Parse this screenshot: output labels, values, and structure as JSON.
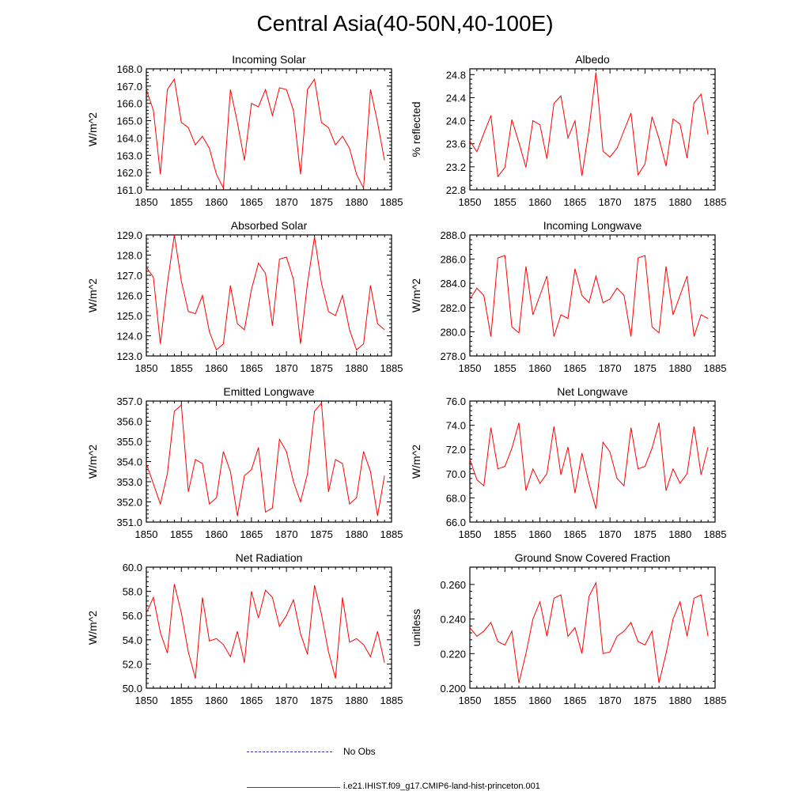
{
  "figure": {
    "title": "Central Asia(40-50N,40-100E)",
    "legend": [
      {
        "label": "No Obs",
        "color": "#3333cc",
        "style": "dashed"
      },
      {
        "label": "i.e21.IHIST.f09_g17.CMIP6-land-hist-princeton.001",
        "color": "#ff0000",
        "style": "solid"
      }
    ]
  },
  "chart_data": [
    {
      "type": "line",
      "title": "Incoming Solar",
      "ylabel": "W/m^2",
      "xlim": [
        1850,
        1885
      ],
      "ylim": [
        161.0,
        168.0
      ],
      "yticks": [
        "161.0",
        "162.0",
        "163.0",
        "164.0",
        "165.0",
        "166.0",
        "167.0",
        "168.0"
      ],
      "xticks": [
        "1850",
        "1855",
        "1860",
        "1865",
        "1870",
        "1875",
        "1880",
        "1885"
      ],
      "series": [
        {
          "color": "#ff0000",
          "x": [
            1850,
            1851,
            1852,
            1853,
            1854,
            1855,
            1856,
            1857,
            1858,
            1859,
            1860,
            1861,
            1862,
            1863,
            1864,
            1865,
            1866,
            1867,
            1868,
            1869,
            1870,
            1871,
            1872,
            1873,
            1874,
            1875,
            1876,
            1877,
            1878,
            1879,
            1880,
            1881,
            1882,
            1883,
            1884
          ],
          "values": [
            166.8,
            165.6,
            161.9,
            166.8,
            167.4,
            164.9,
            164.6,
            163.6,
            164.1,
            163.4,
            161.9,
            161.1,
            166.8,
            164.9,
            162.7,
            166.0,
            165.8,
            166.8,
            165.3,
            166.9,
            166.8,
            165.6,
            161.9,
            166.8,
            167.4,
            164.9,
            164.6,
            163.6,
            164.1,
            163.4,
            161.9,
            161.1,
            166.8,
            164.9,
            162.7
          ]
        }
      ]
    },
    {
      "type": "line",
      "title": "Albedo",
      "ylabel": "% reflected",
      "xlim": [
        1850,
        1885
      ],
      "ylim": [
        22.8,
        24.9
      ],
      "yticks": [
        "22.8",
        "23.2",
        "23.6",
        "24.0",
        "24.4",
        "24.8"
      ],
      "ytick_values": [
        22.8,
        23.2,
        23.6,
        24.0,
        24.4,
        24.8
      ],
      "xticks": [
        "1850",
        "1855",
        "1860",
        "1865",
        "1870",
        "1875",
        "1880",
        "1885"
      ],
      "series": [
        {
          "color": "#ff0000",
          "x": [
            1850,
            1851,
            1852,
            1853,
            1854,
            1855,
            1856,
            1857,
            1858,
            1859,
            1860,
            1861,
            1862,
            1863,
            1864,
            1865,
            1866,
            1867,
            1868,
            1869,
            1870,
            1871,
            1872,
            1873,
            1874,
            1875,
            1876,
            1877,
            1878,
            1879,
            1880,
            1881,
            1882,
            1883,
            1884
          ],
          "values": [
            23.65,
            23.46,
            23.78,
            24.09,
            23.03,
            23.19,
            24.02,
            23.62,
            23.19,
            24.0,
            23.93,
            23.34,
            24.3,
            24.43,
            23.7,
            24.0,
            23.04,
            23.85,
            24.84,
            23.47,
            23.37,
            23.52,
            23.83,
            24.13,
            23.06,
            23.25,
            24.07,
            23.69,
            23.21,
            24.03,
            23.94,
            23.35,
            24.31,
            24.46,
            23.76
          ]
        }
      ]
    },
    {
      "type": "line",
      "title": "Absorbed Solar",
      "ylabel": "W/m^2",
      "xlim": [
        1850,
        1885
      ],
      "ylim": [
        123.0,
        129.0
      ],
      "yticks": [
        "123.0",
        "124.0",
        "125.0",
        "126.0",
        "127.0",
        "128.0",
        "129.0"
      ],
      "xticks": [
        "1850",
        "1855",
        "1860",
        "1865",
        "1870",
        "1875",
        "1880",
        "1885"
      ],
      "series": [
        {
          "color": "#ff0000",
          "x": [
            1850,
            1851,
            1852,
            1853,
            1854,
            1855,
            1856,
            1857,
            1858,
            1859,
            1860,
            1861,
            1862,
            1863,
            1864,
            1865,
            1866,
            1867,
            1868,
            1869,
            1870,
            1871,
            1872,
            1873,
            1874,
            1875,
            1876,
            1877,
            1878,
            1879,
            1880,
            1881,
            1882,
            1883,
            1884
          ],
          "values": [
            127.4,
            126.9,
            123.6,
            126.6,
            129.0,
            126.7,
            125.2,
            125.1,
            126.0,
            124.2,
            123.3,
            123.6,
            126.5,
            124.6,
            124.3,
            126.3,
            127.6,
            127.1,
            124.5,
            127.8,
            127.9,
            126.8,
            123.6,
            126.6,
            128.9,
            126.6,
            125.2,
            125.0,
            126.0,
            124.3,
            123.3,
            123.6,
            126.5,
            124.6,
            124.3
          ]
        }
      ]
    },
    {
      "type": "line",
      "title": "Incoming Longwave",
      "ylabel": "W/m^2",
      "xlim": [
        1850,
        1885
      ],
      "ylim": [
        278.0,
        288.0
      ],
      "yticks": [
        "278.0",
        "280.0",
        "282.0",
        "284.0",
        "286.0",
        "288.0"
      ],
      "xticks": [
        "1850",
        "1855",
        "1860",
        "1865",
        "1870",
        "1875",
        "1880",
        "1885"
      ],
      "series": [
        {
          "color": "#ff0000",
          "x": [
            1850,
            1851,
            1852,
            1853,
            1854,
            1855,
            1856,
            1857,
            1858,
            1859,
            1860,
            1861,
            1862,
            1863,
            1864,
            1865,
            1866,
            1867,
            1868,
            1869,
            1870,
            1871,
            1872,
            1873,
            1874,
            1875,
            1876,
            1877,
            1878,
            1879,
            1880,
            1881,
            1882,
            1883,
            1884
          ],
          "values": [
            282.7,
            283.6,
            283.0,
            279.6,
            286.1,
            286.3,
            280.4,
            279.9,
            285.4,
            281.4,
            283.0,
            284.6,
            279.6,
            281.4,
            281.1,
            285.2,
            283.0,
            282.4,
            284.6,
            282.4,
            282.7,
            283.6,
            283.0,
            279.6,
            286.1,
            286.3,
            280.4,
            279.9,
            285.4,
            281.4,
            283.0,
            284.6,
            279.6,
            281.4,
            281.1
          ]
        }
      ]
    },
    {
      "type": "line",
      "title": "Emitted Longwave",
      "ylabel": "W/m^2",
      "xlim": [
        1850,
        1885
      ],
      "ylim": [
        351.0,
        357.0
      ],
      "yticks": [
        "351.0",
        "352.0",
        "353.0",
        "354.0",
        "355.0",
        "356.0",
        "357.0"
      ],
      "xticks": [
        "1850",
        "1855",
        "1860",
        "1865",
        "1870",
        "1875",
        "1880",
        "1885"
      ],
      "series": [
        {
          "color": "#ff0000",
          "x": [
            1850,
            1851,
            1852,
            1853,
            1854,
            1855,
            1856,
            1857,
            1858,
            1859,
            1860,
            1861,
            1862,
            1863,
            1864,
            1865,
            1866,
            1867,
            1868,
            1869,
            1870,
            1871,
            1872,
            1873,
            1874,
            1875,
            1876,
            1877,
            1878,
            1879,
            1880,
            1881,
            1882,
            1883,
            1884
          ],
          "values": [
            353.9,
            352.9,
            351.9,
            353.4,
            356.5,
            356.8,
            352.5,
            354.1,
            353.9,
            351.9,
            352.2,
            354.5,
            353.5,
            351.3,
            353.3,
            353.6,
            354.7,
            351.5,
            351.7,
            355.1,
            354.5,
            353.0,
            352.0,
            353.4,
            356.5,
            356.9,
            352.5,
            354.1,
            353.9,
            351.9,
            352.2,
            354.5,
            353.5,
            351.3,
            353.3
          ]
        }
      ]
    },
    {
      "type": "line",
      "title": "Net Longwave",
      "ylabel": "W/m^2",
      "xlim": [
        1850,
        1885
      ],
      "ylim": [
        66.0,
        76.0
      ],
      "yticks": [
        "66.0",
        "68.0",
        "70.0",
        "72.0",
        "74.0",
        "76.0"
      ],
      "xticks": [
        "1850",
        "1855",
        "1860",
        "1865",
        "1870",
        "1875",
        "1880",
        "1885"
      ],
      "series": [
        {
          "color": "#ff0000",
          "x": [
            1850,
            1851,
            1852,
            1853,
            1854,
            1855,
            1856,
            1857,
            1858,
            1859,
            1860,
            1861,
            1862,
            1863,
            1864,
            1865,
            1866,
            1867,
            1868,
            1869,
            1870,
            1871,
            1872,
            1873,
            1874,
            1875,
            1876,
            1877,
            1878,
            1879,
            1880,
            1881,
            1882,
            1883,
            1884
          ],
          "values": [
            71.2,
            69.5,
            69.0,
            73.8,
            70.4,
            70.6,
            72.1,
            74.2,
            68.6,
            70.4,
            69.2,
            70.0,
            73.9,
            69.9,
            72.2,
            68.4,
            71.7,
            69.2,
            67.1,
            72.6,
            71.8,
            69.6,
            69.0,
            73.8,
            70.4,
            70.6,
            72.1,
            74.2,
            68.6,
            70.4,
            69.2,
            70.0,
            73.9,
            69.9,
            72.2
          ]
        }
      ]
    },
    {
      "type": "line",
      "title": "Net Radiation",
      "ylabel": "W/m^2",
      "xlim": [
        1850,
        1885
      ],
      "ylim": [
        50.0,
        60.0
      ],
      "yticks": [
        "50.0",
        "52.0",
        "54.0",
        "56.0",
        "58.0",
        "60.0"
      ],
      "xticks": [
        "1850",
        "1855",
        "1860",
        "1865",
        "1870",
        "1875",
        "1880",
        "1885"
      ],
      "series": [
        {
          "color": "#ff0000",
          "x": [
            1850,
            1851,
            1852,
            1853,
            1854,
            1855,
            1856,
            1857,
            1858,
            1859,
            1860,
            1861,
            1862,
            1863,
            1864,
            1865,
            1866,
            1867,
            1868,
            1869,
            1870,
            1871,
            1872,
            1873,
            1874,
            1875,
            1876,
            1877,
            1878,
            1879,
            1880,
            1881,
            1882,
            1883,
            1884
          ],
          "values": [
            56.2,
            57.5,
            54.6,
            52.9,
            58.6,
            56.2,
            53.0,
            50.8,
            57.5,
            53.9,
            54.1,
            53.6,
            52.6,
            54.7,
            52.1,
            58.0,
            55.8,
            58.1,
            57.5,
            55.1,
            56.0,
            57.3,
            54.5,
            52.8,
            58.5,
            56.1,
            53.0,
            50.8,
            57.5,
            53.8,
            54.1,
            53.6,
            52.6,
            54.7,
            52.1
          ]
        }
      ]
    },
    {
      "type": "line",
      "title": "Ground Snow Covered Fraction",
      "ylabel": "unitless",
      "xlim": [
        1850,
        1885
      ],
      "ylim": [
        0.2,
        0.27
      ],
      "yticks": [
        "0.200",
        "0.220",
        "0.240",
        "0.260"
      ],
      "ytick_values": [
        0.2,
        0.22,
        0.24,
        0.26
      ],
      "xticks": [
        "1850",
        "1855",
        "1860",
        "1865",
        "1870",
        "1875",
        "1880",
        "1885"
      ],
      "series": [
        {
          "color": "#ff0000",
          "x": [
            1850,
            1851,
            1852,
            1853,
            1854,
            1855,
            1856,
            1857,
            1858,
            1859,
            1860,
            1861,
            1862,
            1863,
            1864,
            1865,
            1866,
            1867,
            1868,
            1869,
            1870,
            1871,
            1872,
            1873,
            1874,
            1875,
            1876,
            1877,
            1878,
            1879,
            1880,
            1881,
            1882,
            1883,
            1884
          ],
          "values": [
            0.235,
            0.23,
            0.233,
            0.238,
            0.227,
            0.225,
            0.233,
            0.203,
            0.22,
            0.24,
            0.25,
            0.23,
            0.252,
            0.254,
            0.23,
            0.235,
            0.22,
            0.253,
            0.261,
            0.22,
            0.221,
            0.23,
            0.233,
            0.238,
            0.227,
            0.225,
            0.233,
            0.203,
            0.22,
            0.24,
            0.25,
            0.23,
            0.252,
            0.254,
            0.23
          ]
        }
      ]
    }
  ]
}
